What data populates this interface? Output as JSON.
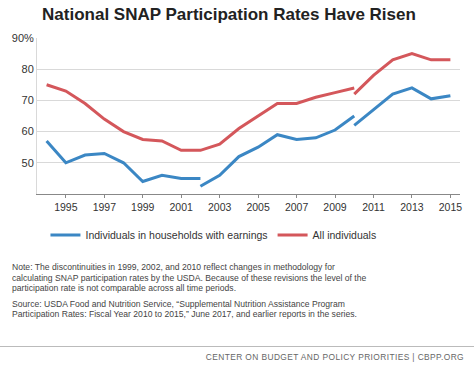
{
  "chart_data": {
    "type": "line",
    "title": "National SNAP Participation Rates Have Risen",
    "series": [
      {
        "name": "Individuals in households with earnings",
        "color": "#3b87c4",
        "x": [
          1994,
          1995,
          1996,
          1997,
          1998,
          1999,
          2000,
          2001,
          2002,
          2002,
          2002,
          2003,
          2004,
          2005,
          2006,
          2007,
          2008,
          2009,
          2010,
          2010,
          2010,
          2011,
          2012,
          2013,
          2014,
          2015
        ],
        "values": [
          57,
          50,
          52.5,
          53,
          50,
          44,
          46,
          45,
          45,
          null,
          42.5,
          46,
          52,
          55,
          59,
          57.5,
          58,
          60.5,
          65,
          null,
          62,
          67,
          72,
          74,
          70.5,
          71.5
        ]
      },
      {
        "name": "All individuals",
        "color": "#d4575b",
        "x": [
          1994,
          1995,
          1996,
          1997,
          1998,
          1999,
          2000,
          2001,
          2002,
          2003,
          2004,
          2005,
          2006,
          2007,
          2008,
          2009,
          2010,
          2010,
          2010,
          2011,
          2012,
          2013,
          2014,
          2015
        ],
        "values": [
          75,
          73,
          69,
          64,
          60,
          57.5,
          57,
          54,
          54,
          56,
          61,
          65,
          69,
          69,
          71,
          72.5,
          74,
          null,
          72,
          78,
          83,
          85,
          83,
          83
        ]
      }
    ],
    "xlim": [
      1993.5,
      2015.5
    ],
    "xticks": [
      1995,
      1997,
      1999,
      2001,
      2003,
      2005,
      2007,
      2009,
      2011,
      2013,
      2015
    ],
    "ylim": [
      40,
      90
    ],
    "yticks": [
      50,
      60,
      70,
      80,
      {
        "value": 90,
        "label": "90%"
      }
    ],
    "grid": true,
    "legend": "bottom",
    "notes": [
      [
        "Note: The discontinuities in 1999, 2002, and 2010 reflect changes in methodology for",
        "calculating SNAP participation rates by the USDA. Because of these revisions the level of the",
        "participation rate is not comparable across all time periods."
      ],
      [
        "Source: USDA Food and Nutrition Service, “Supplemental Nutrition Assistance Program",
        "Participation Rates: Fiscal Year 2010 to 2015,” June 2017, and earlier reports in the series."
      ]
    ],
    "footer": "CENTER ON BUDGET AND POLICY PRIORITIES | CBPP.ORG"
  }
}
